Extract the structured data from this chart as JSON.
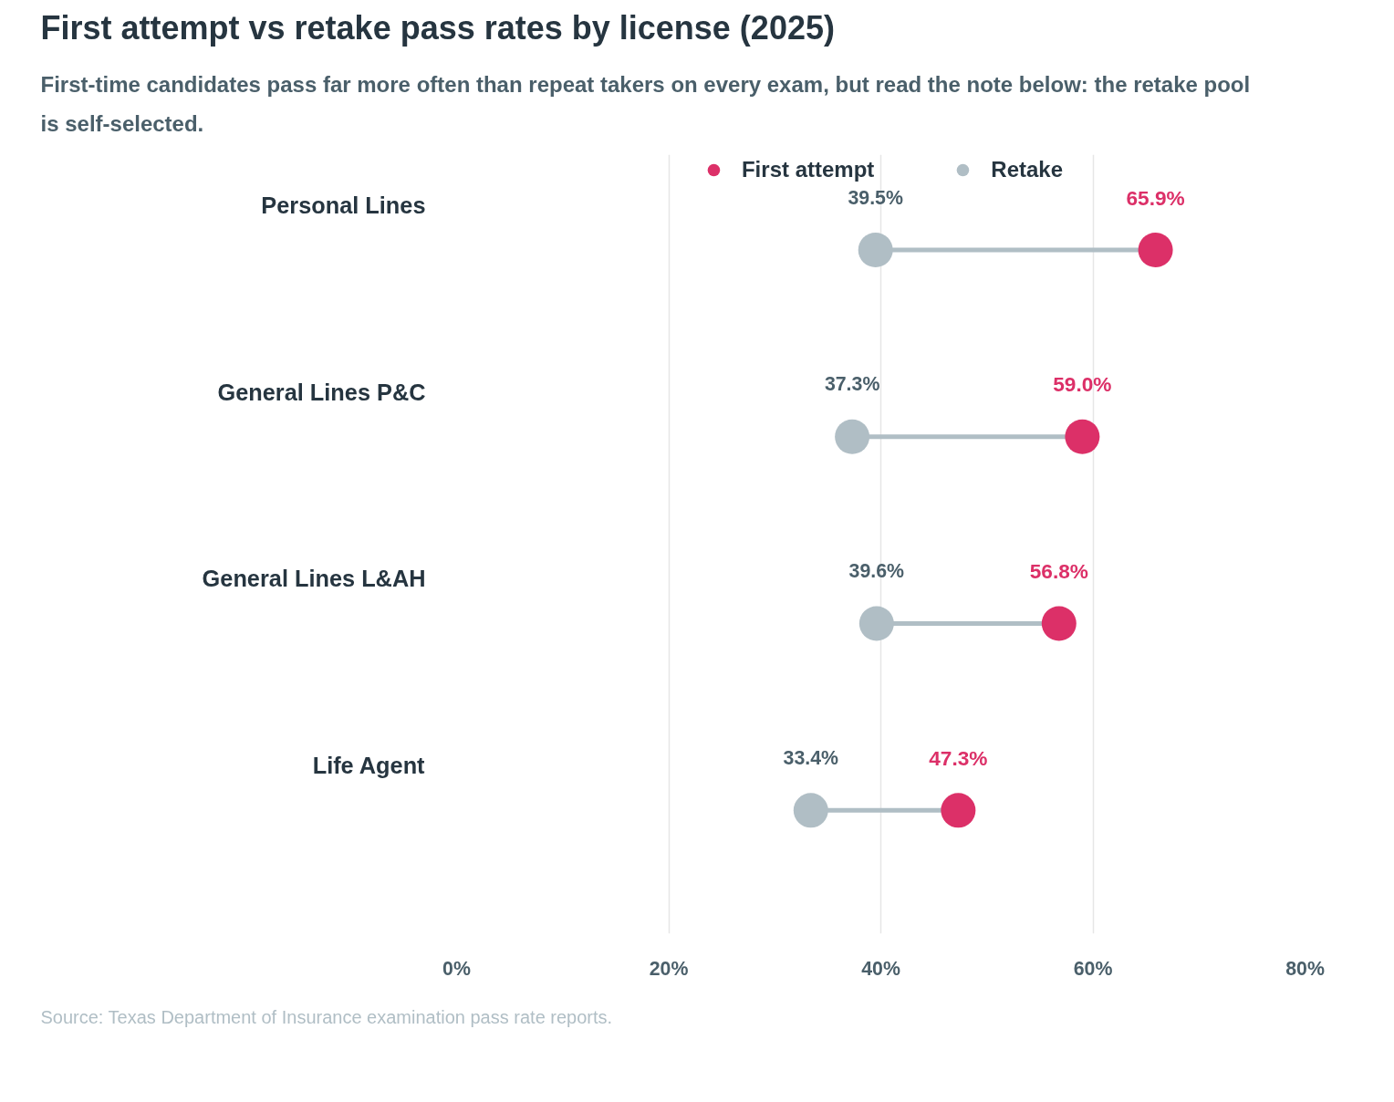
{
  "chart_data": {
    "type": "scatter",
    "orientation": "horizontal",
    "title": "First attempt vs retake pass rates by license (2025)",
    "subtitle": "First-time candidates pass far more often than repeat takers on every exam, but read the note below: the retake pool is self-selected.",
    "categories": [
      "Personal Lines",
      "General Lines P&C",
      "General Lines L&AH",
      "Life Agent"
    ],
    "series": [
      {
        "name": "First attempt",
        "color": "#dc3068",
        "values": [
          65.9,
          59.0,
          56.8,
          47.3
        ],
        "value_labels": [
          "65.9%",
          "59.0%",
          "56.8%",
          "47.3%"
        ]
      },
      {
        "name": "Retake",
        "color": "#b0bec5",
        "values": [
          39.5,
          37.3,
          39.6,
          33.4
        ],
        "value_labels": [
          "39.5%",
          "37.3%",
          "39.6%",
          "33.4%"
        ]
      }
    ],
    "xlim": [
      0,
      80
    ],
    "xticks": [
      {
        "value": 0,
        "label": "0%"
      },
      {
        "value": 20,
        "label": "20%"
      },
      {
        "value": 40,
        "label": "40%"
      },
      {
        "value": 60,
        "label": "60%"
      },
      {
        "value": 80,
        "label": "80%"
      }
    ],
    "grid": "x",
    "legend": "top",
    "marker": "circle",
    "annotations": [
      "Source: Texas Department of Insurance examination pass rate reports."
    ]
  }
}
